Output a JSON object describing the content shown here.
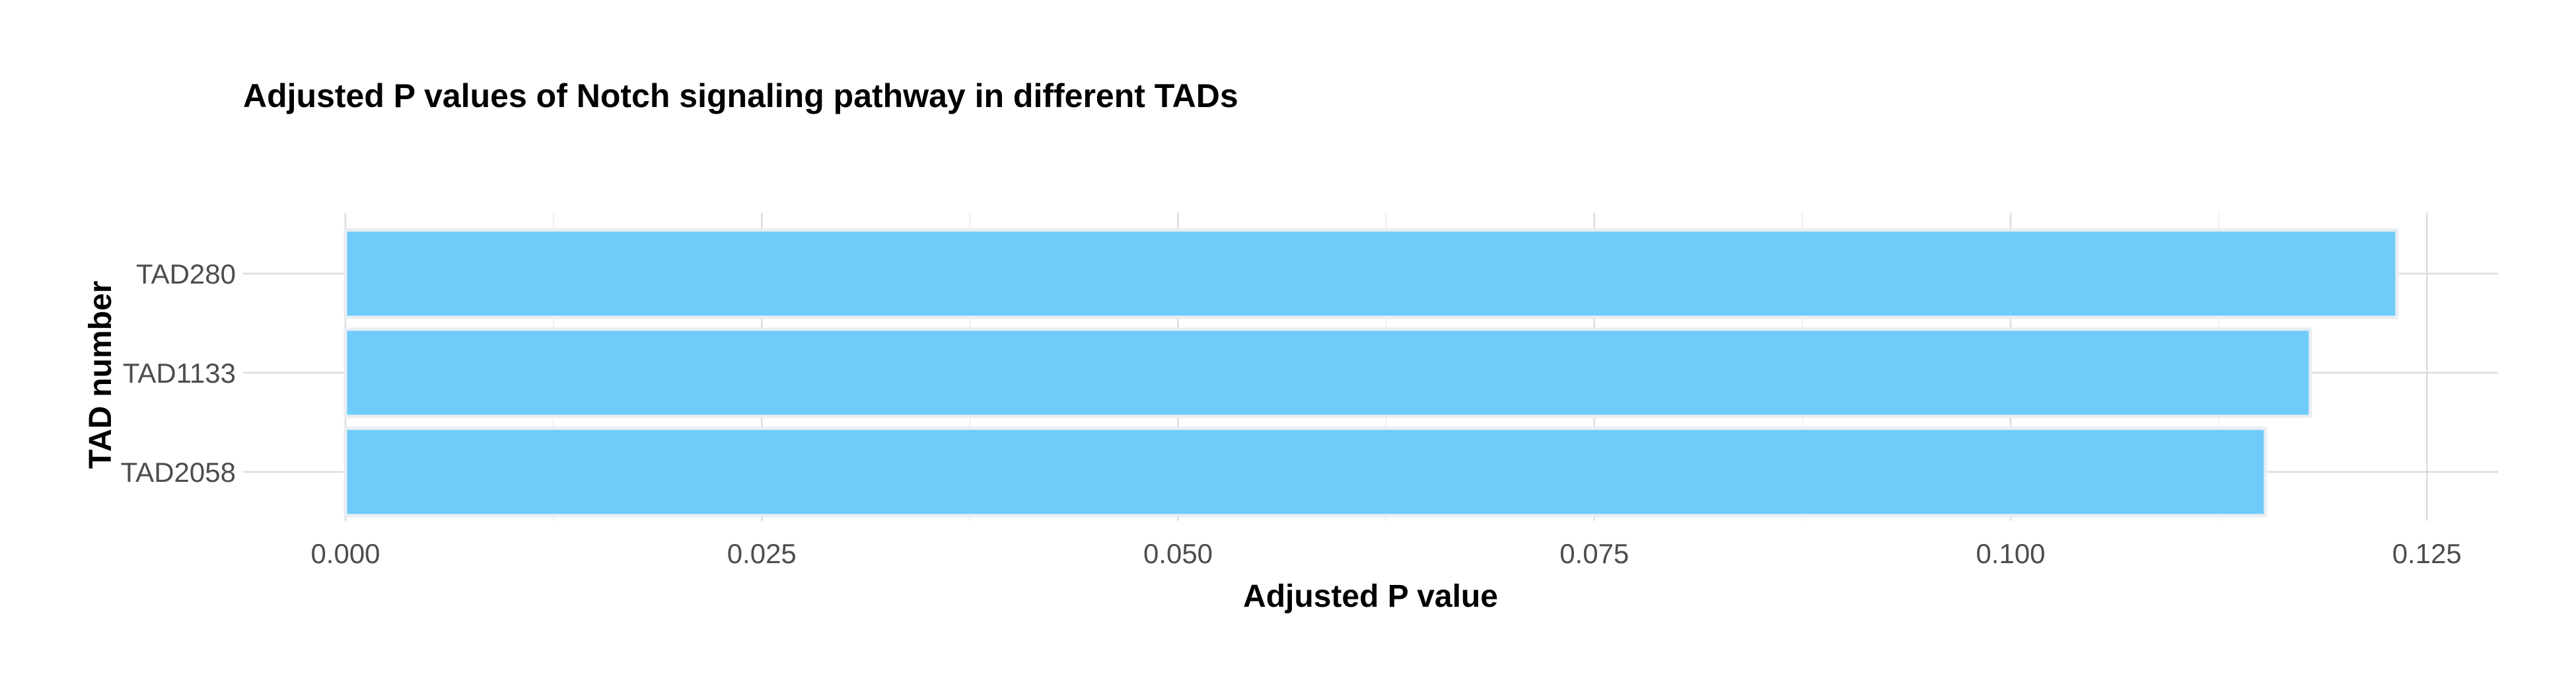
{
  "chart_data": {
    "type": "bar",
    "orientation": "horizontal",
    "title": "Adjusted P values of Notch signaling pathway in different TADs",
    "xlabel": "Adjusted P value",
    "ylabel": "TAD number",
    "categories": [
      "TAD280",
      "TAD1133",
      "TAD2058"
    ],
    "values": [
      0.1232,
      0.118,
      0.1153
    ],
    "xlim": [
      0,
      0.129
    ],
    "x_ticks": [
      "0.000",
      "0.025",
      "0.050",
      "0.075",
      "0.100",
      "0.125"
    ],
    "x_tick_values": [
      0,
      0.025,
      0.05,
      0.075,
      0.1,
      0.125
    ],
    "x_minor_tick_values": [
      0.0125,
      0.0375,
      0.0625,
      0.0875,
      0.1125
    ],
    "bar_color": "#6ECBFA",
    "grid": true,
    "legend": "none"
  }
}
